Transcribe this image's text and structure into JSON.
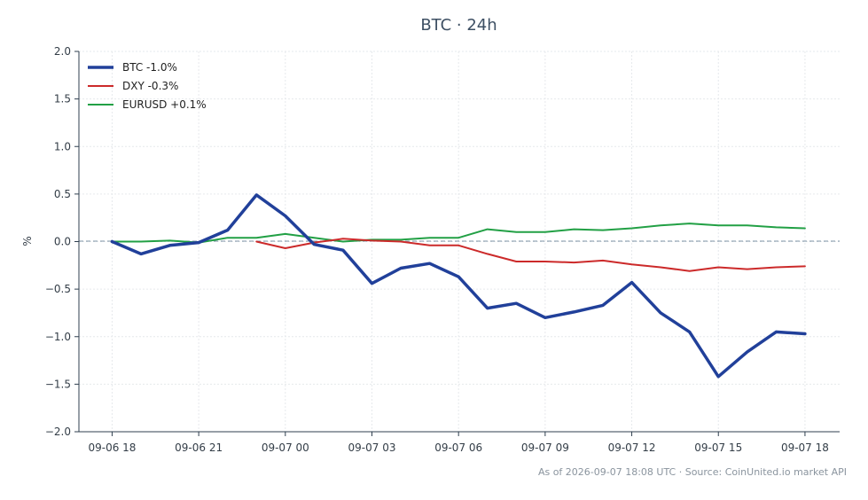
{
  "chart_data": {
    "type": "line",
    "title": "BTC · 24h",
    "xlabel": "",
    "ylabel": "%",
    "ylim": [
      -2.0,
      2.0
    ],
    "yticks": [
      "2.0",
      "1.5",
      "1.0",
      "0.5",
      "0.0",
      "−0.5",
      "−1.0",
      "−1.5",
      "−2.0"
    ],
    "ytick_values": [
      2.0,
      1.5,
      1.0,
      0.5,
      0.0,
      -0.5,
      -1.0,
      -1.5,
      -2.0
    ],
    "xticks": [
      "09-06 18",
      "09-06 21",
      "09-07 00",
      "09-07 03",
      "09-07 06",
      "09-07 09",
      "09-07 12",
      "09-07 15",
      "09-07 18"
    ],
    "xtick_hours": [
      0,
      3,
      6,
      9,
      12,
      15,
      18,
      21,
      24
    ],
    "xlim_hours": [
      -1.15,
      25.2
    ],
    "grid": true,
    "zero_line": true,
    "legend_position": "top-left",
    "series": [
      {
        "name": "BTC -1.0%",
        "color": "#21409a",
        "width": 3.5,
        "x_hours": [
          0,
          1,
          2,
          3,
          4,
          5,
          6,
          7,
          8,
          9,
          10,
          11,
          12,
          13,
          14,
          15,
          16,
          17,
          18,
          19,
          20,
          21,
          22,
          23,
          24
        ],
        "values": [
          0.0,
          -0.13,
          -0.04,
          -0.01,
          0.12,
          0.49,
          0.27,
          -0.03,
          -0.09,
          -0.44,
          -0.28,
          -0.23,
          -0.37,
          -0.7,
          -0.65,
          -0.8,
          -0.74,
          -0.67,
          -0.43,
          -0.75,
          -0.95,
          -1.42,
          -1.16,
          -0.95,
          -0.97
        ]
      },
      {
        "name": "DXY -0.3%",
        "color": "#cc2a2a",
        "width": 2,
        "x_hours": [
          5,
          6,
          7,
          8,
          9,
          10,
          11,
          12,
          13,
          14,
          15,
          16,
          17,
          18,
          19,
          20,
          21,
          22,
          23,
          24
        ],
        "values": [
          0.0,
          -0.07,
          -0.01,
          0.03,
          0.01,
          0.0,
          -0.04,
          -0.04,
          -0.13,
          -0.21,
          -0.21,
          -0.22,
          -0.2,
          -0.24,
          -0.27,
          -0.31,
          -0.27,
          -0.29,
          -0.27,
          -0.26
        ]
      },
      {
        "name": "EURUSD +0.1%",
        "color": "#22a045",
        "width": 2,
        "x_hours": [
          0,
          1,
          2,
          3,
          4,
          5,
          6,
          7,
          8,
          9,
          10,
          11,
          12,
          13,
          14,
          15,
          16,
          17,
          18,
          19,
          20,
          21,
          22,
          23,
          24
        ],
        "values": [
          0.0,
          0.0,
          0.01,
          -0.01,
          0.04,
          0.04,
          0.08,
          0.04,
          0.0,
          0.02,
          0.02,
          0.04,
          0.04,
          0.13,
          0.1,
          0.1,
          0.13,
          0.12,
          0.14,
          0.17,
          0.19,
          0.17,
          0.17,
          0.15,
          0.14
        ]
      }
    ]
  },
  "footer": "As of 2026-09-07 18:08 UTC · Source: CoinUnited.io market API"
}
